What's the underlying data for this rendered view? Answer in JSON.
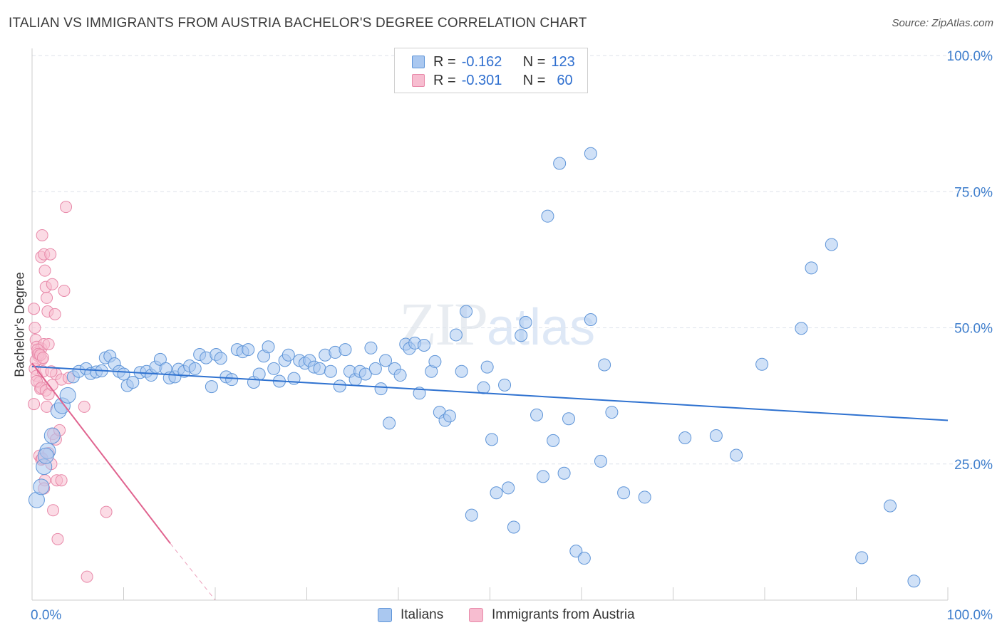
{
  "title": "ITALIAN VS IMMIGRANTS FROM AUSTRIA BACHELOR'S DEGREE CORRELATION CHART",
  "source": "Source: ZipAtlas.com",
  "watermark": {
    "zip": "ZIP",
    "atlas": "atlas"
  },
  "legend": {
    "rows": [
      {
        "r_label": "R =",
        "r_value": "-0.162",
        "n_label": "N =",
        "n_value": "123"
      },
      {
        "r_label": "R =",
        "r_value": "-0.301",
        "n_label": "N =",
        "n_value": "60"
      }
    ]
  },
  "bottom_legend": {
    "italians": "Italians",
    "austria": "Immigrants from Austria"
  },
  "colors": {
    "blue_fill": "#aac8f0",
    "blue_stroke": "#5f95d8",
    "blue_line": "#2f72d0",
    "pink_fill": "#f7bdd0",
    "pink_stroke": "#e889a9",
    "pink_line": "#e0638f",
    "grid": "#dde2ea",
    "tick_label": "#3d7dcc"
  },
  "chart_data": {
    "type": "scatter",
    "title": "ITALIAN VS IMMIGRANTS FROM AUSTRIA BACHELOR'S DEGREE CORRELATION CHART",
    "xlabel": "",
    "ylabel": "Bachelor's Degree",
    "xlim": [
      0,
      100
    ],
    "ylim": [
      0,
      100
    ],
    "x_tick_labels": [
      "0.0%",
      "100.0%"
    ],
    "y_tick_labels": [
      "100.0%",
      "75.0%",
      "50.0%",
      "25.0%"
    ],
    "y_ticks": [
      100,
      75,
      50,
      25
    ],
    "grid": true,
    "legend_position": "top-center",
    "series": [
      {
        "name": "Italians",
        "r": -0.162,
        "n": 123,
        "trend": {
          "x": [
            0,
            100
          ],
          "y": [
            42.9,
            33.0
          ]
        },
        "points": [
          [
            0.5,
            18.4
          ],
          [
            1.0,
            20.8
          ],
          [
            1.3,
            24.5
          ],
          [
            1.7,
            27.4
          ],
          [
            2.2,
            30.2
          ],
          [
            2.9,
            34.8
          ],
          [
            3.3,
            35.7
          ],
          [
            3.9,
            37.6
          ],
          [
            4.5,
            41.0
          ],
          [
            5.1,
            42.0
          ],
          [
            5.9,
            42.5
          ],
          [
            6.4,
            41.6
          ],
          [
            7.0,
            41.9
          ],
          [
            7.6,
            42.1
          ],
          [
            8.0,
            44.5
          ],
          [
            8.5,
            44.8
          ],
          [
            9.0,
            43.4
          ],
          [
            9.5,
            42.0
          ],
          [
            10.0,
            41.5
          ],
          [
            10.4,
            39.4
          ],
          [
            11.0,
            40.0
          ],
          [
            11.8,
            41.8
          ],
          [
            12.5,
            42.0
          ],
          [
            13.0,
            41.3
          ],
          [
            13.5,
            42.8
          ],
          [
            14.0,
            44.2
          ],
          [
            14.6,
            42.5
          ],
          [
            15.0,
            40.8
          ],
          [
            15.6,
            41.0
          ],
          [
            16.0,
            42.4
          ],
          [
            16.6,
            42.0
          ],
          [
            17.2,
            43.0
          ],
          [
            17.8,
            42.5
          ],
          [
            18.3,
            45.1
          ],
          [
            19.0,
            44.5
          ],
          [
            19.6,
            39.2
          ],
          [
            20.1,
            45.1
          ],
          [
            20.6,
            44.4
          ],
          [
            21.2,
            41.0
          ],
          [
            21.8,
            40.5
          ],
          [
            22.4,
            46.0
          ],
          [
            23.0,
            45.6
          ],
          [
            23.6,
            46.0
          ],
          [
            24.2,
            40.0
          ],
          [
            24.8,
            41.5
          ],
          [
            25.3,
            44.8
          ],
          [
            25.8,
            46.5
          ],
          [
            26.4,
            42.5
          ],
          [
            27.0,
            40.2
          ],
          [
            27.6,
            44.0
          ],
          [
            28.0,
            45.0
          ],
          [
            28.6,
            40.7
          ],
          [
            29.2,
            44.0
          ],
          [
            29.8,
            43.5
          ],
          [
            30.3,
            44.0
          ],
          [
            30.8,
            42.8
          ],
          [
            31.4,
            42.5
          ],
          [
            32.0,
            45.0
          ],
          [
            32.6,
            42.0
          ],
          [
            33.1,
            45.5
          ],
          [
            33.6,
            39.3
          ],
          [
            34.2,
            46.0
          ],
          [
            34.7,
            42.0
          ],
          [
            35.3,
            40.5
          ],
          [
            35.8,
            42.0
          ],
          [
            36.4,
            41.5
          ],
          [
            37.0,
            46.3
          ],
          [
            37.5,
            42.5
          ],
          [
            38.1,
            38.8
          ],
          [
            38.6,
            44.0
          ],
          [
            39.0,
            32.5
          ],
          [
            39.6,
            42.5
          ],
          [
            40.2,
            41.3
          ],
          [
            40.8,
            47.0
          ],
          [
            41.2,
            46.2
          ],
          [
            41.8,
            47.2
          ],
          [
            42.3,
            38.0
          ],
          [
            42.8,
            46.8
          ],
          [
            43.6,
            42.0
          ],
          [
            44.0,
            43.8
          ],
          [
            44.5,
            34.5
          ],
          [
            45.1,
            33.0
          ],
          [
            45.6,
            33.8
          ],
          [
            46.3,
            48.7
          ],
          [
            46.9,
            42.0
          ],
          [
            47.4,
            53.0
          ],
          [
            48.0,
            15.6
          ],
          [
            49.3,
            39.0
          ],
          [
            49.7,
            42.8
          ],
          [
            50.2,
            29.5
          ],
          [
            50.7,
            19.7
          ],
          [
            51.6,
            39.5
          ],
          [
            52.0,
            20.6
          ],
          [
            52.6,
            13.4
          ],
          [
            53.4,
            48.6
          ],
          [
            53.9,
            51.0
          ],
          [
            55.1,
            34.0
          ],
          [
            55.8,
            22.7
          ],
          [
            56.3,
            70.5
          ],
          [
            56.9,
            29.3
          ],
          [
            57.6,
            80.2
          ],
          [
            58.1,
            23.3
          ],
          [
            58.6,
            33.3
          ],
          [
            59.4,
            9.0
          ],
          [
            60.3,
            7.7
          ],
          [
            61.0,
            51.5
          ],
          [
            62.1,
            25.5
          ],
          [
            62.5,
            43.2
          ],
          [
            63.3,
            34.5
          ],
          [
            64.6,
            19.7
          ],
          [
            66.9,
            18.9
          ],
          [
            71.3,
            29.8
          ],
          [
            74.7,
            30.2
          ],
          [
            76.9,
            26.6
          ],
          [
            79.7,
            43.3
          ],
          [
            84.0,
            49.9
          ],
          [
            85.1,
            61.0
          ],
          [
            87.3,
            65.3
          ],
          [
            90.6,
            7.8
          ],
          [
            93.7,
            17.3
          ],
          [
            96.3,
            3.5
          ],
          [
            61.0,
            82.0
          ],
          [
            1.5,
            26.5
          ]
        ]
      },
      {
        "name": "Immigrants from Austria",
        "r": -0.301,
        "n": 60,
        "trend": {
          "x": [
            0,
            15.1
          ],
          "y": [
            43.5,
            10.4
          ]
        },
        "trend_dashed": {
          "x": [
            15.1,
            20
          ],
          "y": [
            10.4,
            0
          ]
        },
        "points": [
          [
            0.2,
            53.5
          ],
          [
            0.3,
            50.0
          ],
          [
            0.4,
            47.8
          ],
          [
            0.5,
            46.5
          ],
          [
            0.6,
            45.5
          ],
          [
            0.7,
            44.8
          ],
          [
            0.3,
            42.5
          ],
          [
            0.5,
            41.2
          ],
          [
            0.8,
            40.0
          ],
          [
            0.9,
            38.8
          ],
          [
            1.0,
            46.2
          ],
          [
            1.1,
            44.2
          ],
          [
            1.2,
            42.0
          ],
          [
            1.3,
            47.0
          ],
          [
            1.0,
            63.0
          ],
          [
            1.1,
            67.0
          ],
          [
            1.3,
            63.5
          ],
          [
            1.4,
            60.5
          ],
          [
            1.5,
            57.5
          ],
          [
            1.6,
            55.5
          ],
          [
            1.7,
            53.0
          ],
          [
            1.8,
            47.0
          ],
          [
            2.0,
            63.5
          ],
          [
            2.2,
            58.0
          ],
          [
            2.5,
            52.5
          ],
          [
            2.6,
            41.5
          ],
          [
            3.2,
            40.5
          ],
          [
            3.5,
            56.8
          ],
          [
            3.7,
            72.2
          ],
          [
            4.0,
            40.8
          ],
          [
            0.8,
            26.5
          ],
          [
            1.0,
            25.8
          ],
          [
            1.4,
            22.0
          ],
          [
            1.6,
            35.5
          ],
          [
            1.8,
            27.0
          ],
          [
            2.1,
            25.0
          ],
          [
            2.3,
            16.5
          ],
          [
            2.3,
            30.5
          ],
          [
            2.6,
            29.5
          ],
          [
            2.7,
            22.0
          ],
          [
            3.0,
            31.2
          ],
          [
            2.8,
            11.2
          ],
          [
            3.2,
            22.0
          ],
          [
            5.7,
            35.5
          ],
          [
            6.0,
            4.3
          ],
          [
            8.1,
            16.2
          ],
          [
            0.4,
            44.0
          ],
          [
            0.6,
            46.0
          ],
          [
            0.7,
            45.2
          ],
          [
            0.9,
            45.0
          ],
          [
            1.2,
            44.5
          ],
          [
            0.5,
            40.2
          ],
          [
            1.0,
            39.0
          ],
          [
            1.5,
            38.5
          ],
          [
            1.8,
            37.8
          ],
          [
            2.1,
            42.0
          ],
          [
            1.1,
            26.0
          ],
          [
            1.3,
            20.5
          ],
          [
            0.2,
            36.0
          ],
          [
            2.2,
            39.5
          ]
        ]
      }
    ]
  }
}
